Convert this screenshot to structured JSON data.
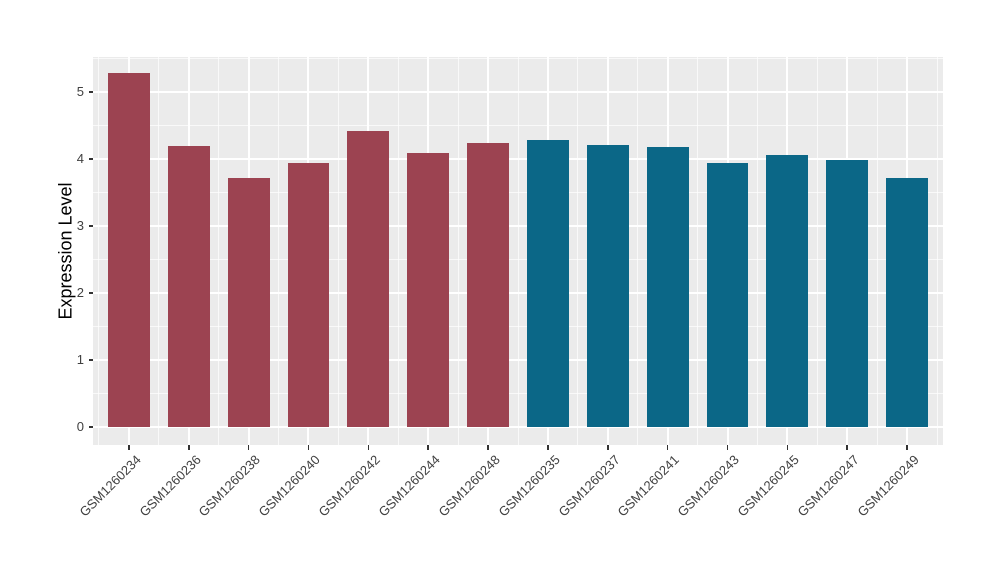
{
  "chart_data": {
    "type": "bar",
    "title": "",
    "xlabel": "",
    "ylabel": "Expression Level",
    "categories": [
      "GSM1260234",
      "GSM1260236",
      "GSM1260238",
      "GSM1260240",
      "GSM1260242",
      "GSM1260244",
      "GSM1260248",
      "GSM1260235",
      "GSM1260237",
      "GSM1260241",
      "GSM1260243",
      "GSM1260245",
      "GSM1260247",
      "GSM1260249"
    ],
    "values": [
      5.28,
      4.19,
      3.72,
      3.94,
      4.41,
      4.09,
      4.23,
      4.28,
      4.21,
      4.17,
      3.94,
      4.06,
      3.99,
      3.72
    ],
    "groups": [
      "A",
      "A",
      "A",
      "A",
      "A",
      "A",
      "A",
      "B",
      "B",
      "B",
      "B",
      "B",
      "B",
      "B"
    ],
    "group_colors": {
      "A": "#9C4351",
      "B": "#0B6787"
    },
    "y_ticks": [
      0,
      1,
      2,
      3,
      4,
      5
    ],
    "y_minor_ticks": [
      0.5,
      1.5,
      2.5,
      3.5,
      4.5,
      5.5
    ],
    "ylim": [
      -0.27,
      5.52
    ],
    "bar_width_fraction": 0.7,
    "grid": true,
    "legend_position": "none",
    "panel_bg": "#EBEBEB",
    "grid_color": "#FFFFFF",
    "axis_text_color": "#404040"
  }
}
